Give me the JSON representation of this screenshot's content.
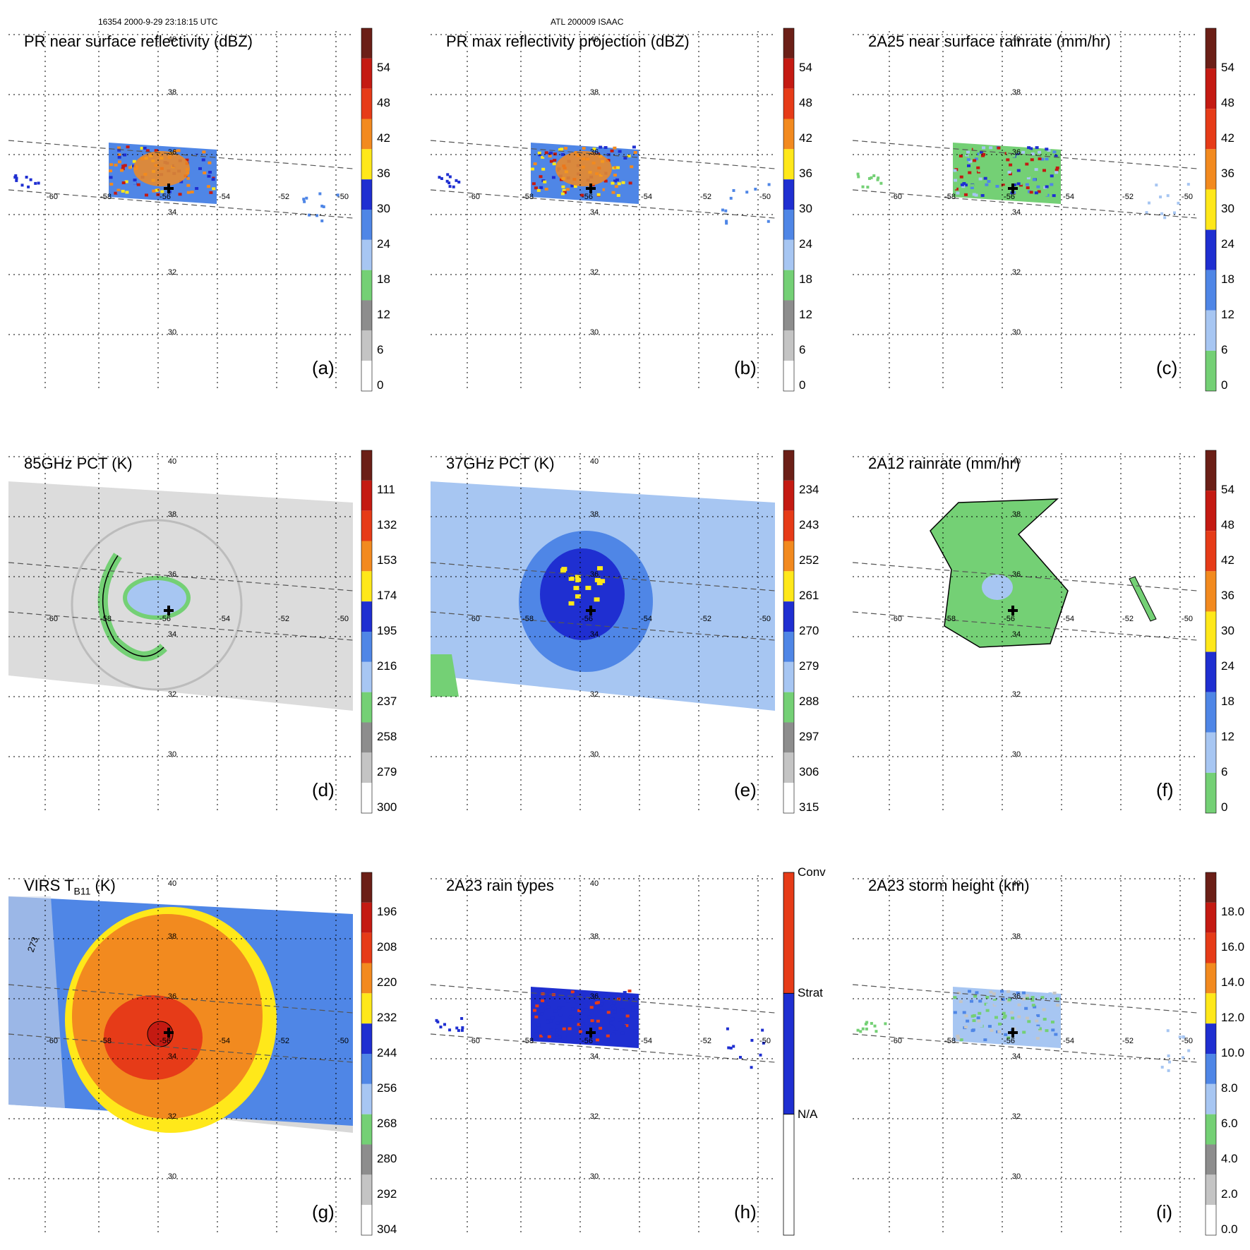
{
  "header": {
    "left": "16354 2000-9-29 23:18:15 UTC",
    "center": "ATL 200009 ISAAC"
  },
  "colors": {
    "darkred": "#6b1f17",
    "red": "#c41a12",
    "redorange": "#e63b18",
    "orange": "#f28a1f",
    "yellow": "#ffe81a",
    "blue": "#1f2fd1",
    "midblue": "#4f86e6",
    "lightblue": "#a7c6f2",
    "green": "#74d075",
    "darkgray": "#8d8d8d",
    "gray": "#c4c4c4",
    "white": "#ffffff"
  },
  "grid": {
    "lon_labels": [
      "-60",
      "-58",
      "-56",
      "-54",
      "-52",
      "-50"
    ],
    "lat_labels": [
      "40",
      "38",
      "36",
      "34",
      "32",
      "30"
    ]
  },
  "panels": [
    {
      "id": "a",
      "title": "PR near surface reflectivity (dBZ)",
      "label": "(a)",
      "colorbar": [
        "0",
        "6",
        "12",
        "18",
        "24",
        "30",
        "36",
        "42",
        "48",
        "54"
      ],
      "scheme": "reflect",
      "swath": "narrow"
    },
    {
      "id": "b",
      "title": "PR max reflectivity projection (dBZ)",
      "label": "(b)",
      "colorbar": [
        "0",
        "6",
        "12",
        "18",
        "24",
        "30",
        "36",
        "42",
        "48",
        "54"
      ],
      "scheme": "reflect",
      "swath": "narrow"
    },
    {
      "id": "c",
      "title": "2A25 near surface rainrate (mm/hr)",
      "label": "(c)",
      "colorbar": [
        "0",
        "6",
        "12",
        "18",
        "24",
        "30",
        "36",
        "42",
        "48",
        "54"
      ],
      "scheme": "rain",
      "swath": "narrow"
    },
    {
      "id": "d",
      "title": "85GHz PCT (K)",
      "label": "(d)",
      "colorbar": [
        "300",
        "279",
        "258",
        "237",
        "216",
        "195",
        "174",
        "153",
        "132",
        "111"
      ],
      "scheme": "pct85",
      "swath": "wide"
    },
    {
      "id": "e",
      "title": "37GHz PCT (K)",
      "label": "(e)",
      "colorbar": [
        "315",
        "306",
        "297",
        "288",
        "279",
        "270",
        "261",
        "252",
        "243",
        "234"
      ],
      "scheme": "pct37",
      "swath": "wide"
    },
    {
      "id": "f",
      "title": "2A12 rainrate (mm/hr)",
      "label": "(f)",
      "colorbar": [
        "0",
        "6",
        "12",
        "18",
        "24",
        "30",
        "36",
        "42",
        "48",
        "54"
      ],
      "scheme": "rain2a12",
      "swath": "wide"
    },
    {
      "id": "g",
      "title_main": "VIRS T",
      "title_sub": "B11",
      "title_unit": " (K)",
      "label": "(g)",
      "colorbar": [
        "304",
        "292",
        "280",
        "268",
        "256",
        "244",
        "232",
        "220",
        "208",
        "196"
      ],
      "scheme": "virs",
      "swath": "wide",
      "contour_label": "273"
    },
    {
      "id": "h",
      "title": "2A23 rain types",
      "label": "(h)",
      "colorbar_types": [
        "N/A",
        "Strat",
        "Conv"
      ],
      "scheme": "types",
      "swath": "narrow"
    },
    {
      "id": "i",
      "title": "2A23 storm height (km)",
      "label": "(i)",
      "colorbar": [
        "0.0",
        "2.0",
        "4.0",
        "6.0",
        "8.0",
        "10.0",
        "12.0",
        "14.0",
        "16.0",
        "18.0"
      ],
      "scheme": "height",
      "swath": "narrow"
    }
  ]
}
